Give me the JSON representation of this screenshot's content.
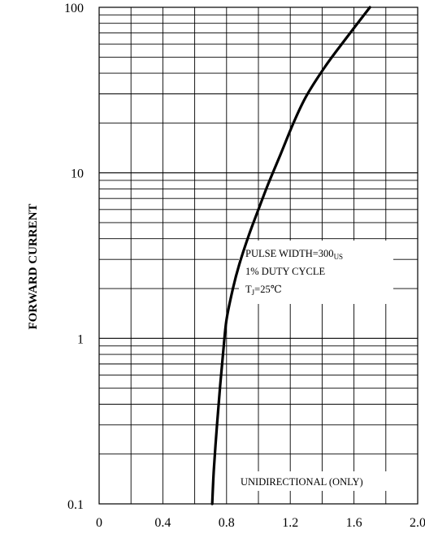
{
  "chart_data": {
    "type": "line",
    "title": "",
    "xlabel": "",
    "ylabel": "FORWARD CURRENT",
    "xlim": [
      0,
      2.0
    ],
    "ylim": [
      0.1,
      100
    ],
    "yscale": "log",
    "grid": true,
    "x_ticks": [
      "0",
      "0.4",
      "0.8",
      "1.2",
      "1.6",
      "2.0"
    ],
    "y_ticks": [
      "0.1",
      "1",
      "10",
      "100"
    ],
    "series": [
      {
        "x": [
          0.71,
          0.72,
          0.74,
          0.76,
          0.78,
          0.8,
          0.84,
          0.88,
          0.94,
          1.0,
          1.06,
          1.14,
          1.22,
          1.3,
          1.42,
          1.54,
          1.7
        ],
        "y": [
          0.1,
          0.16,
          0.3,
          0.52,
          0.85,
          1.3,
          2.0,
          2.8,
          4.2,
          6.0,
          8.5,
          13,
          20,
          29,
          44,
          63,
          100
        ]
      }
    ],
    "annotations": {
      "pulse_width_prefix": "PULSE WIDTH=300",
      "pulse_width_unit": "US",
      "duty_cycle": "1% DUTY CYCLE",
      "temp_prefix": "T",
      "temp_sub": "J",
      "temp_value": "=25℃",
      "note": "UNIDIRECTIONAL (ONLY)"
    }
  }
}
